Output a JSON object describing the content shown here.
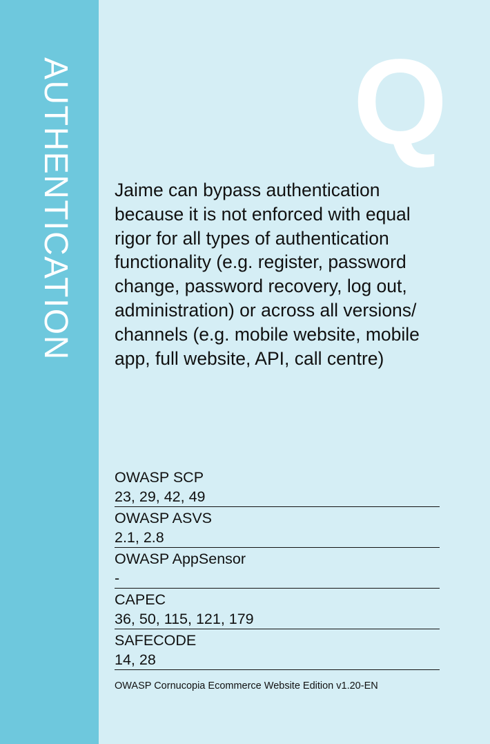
{
  "card": {
    "suit": "AUTHENTICATION",
    "rank": "Q",
    "description": "Jaime can bypass authentication because it is not enforced with equal rigor for all types of authentication functionality (e.g. register, password change, password recovery, log out, administration) or across all versions/ channels (e.g. mobile website, mobile app, full website, API, call centre)"
  },
  "references": [
    {
      "label": "OWASP SCP",
      "value": "23, 29, 42, 49"
    },
    {
      "label": "OWASP ASVS",
      "value": "2.1, 2.8"
    },
    {
      "label": "OWASP AppSensor",
      "value": "-"
    },
    {
      "label": "CAPEC",
      "value": "36, 50, 115, 121, 179"
    },
    {
      "label": "SAFECODE",
      "value": "14, 28"
    }
  ],
  "footer": "OWASP Cornucopia Ecommerce Website Edition v1.20-EN",
  "colors": {
    "sidebar": "#6ec8dd",
    "background": "#d5eef5",
    "letter": "#ffffff",
    "text": "#111111"
  }
}
